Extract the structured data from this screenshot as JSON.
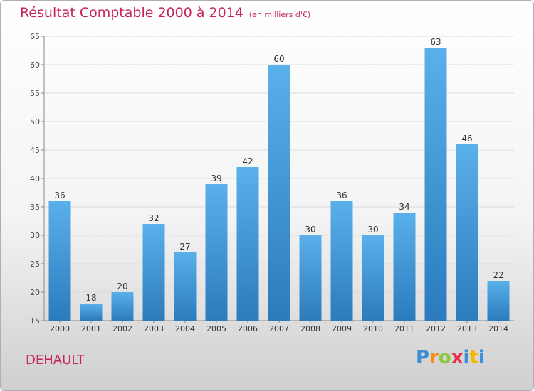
{
  "header": {
    "title": "Résultat Comptable 2000 à 2014",
    "subtitle": "(en milliers d'€)"
  },
  "commune": "DEHAULT",
  "logo": {
    "letters": [
      "P",
      "r",
      "o",
      "x",
      "i",
      "t",
      "i"
    ],
    "colors": [
      "#3a8fd6",
      "#f28c1a",
      "#8dc63f",
      "#e8304f",
      "#3a8fd6",
      "#f5b800",
      "#3a8fd6"
    ]
  },
  "colors": {
    "bar_top": "#5ab0ea",
    "bar_bottom": "#2b7bbd",
    "title": "#c8245c"
  },
  "chart_data": {
    "type": "bar",
    "categories": [
      "2000",
      "2001",
      "2002",
      "2003",
      "2004",
      "2005",
      "2006",
      "2007",
      "2008",
      "2009",
      "2010",
      "2011",
      "2012",
      "2013",
      "2014"
    ],
    "values": [
      36,
      18,
      20,
      32,
      27,
      39,
      42,
      60,
      30,
      36,
      30,
      34,
      63,
      46,
      22
    ],
    "ylim": [
      15,
      65
    ],
    "yticks": [
      15,
      20,
      25,
      30,
      35,
      40,
      45,
      50,
      55,
      60,
      65
    ],
    "grid": true,
    "data_labels": true
  }
}
